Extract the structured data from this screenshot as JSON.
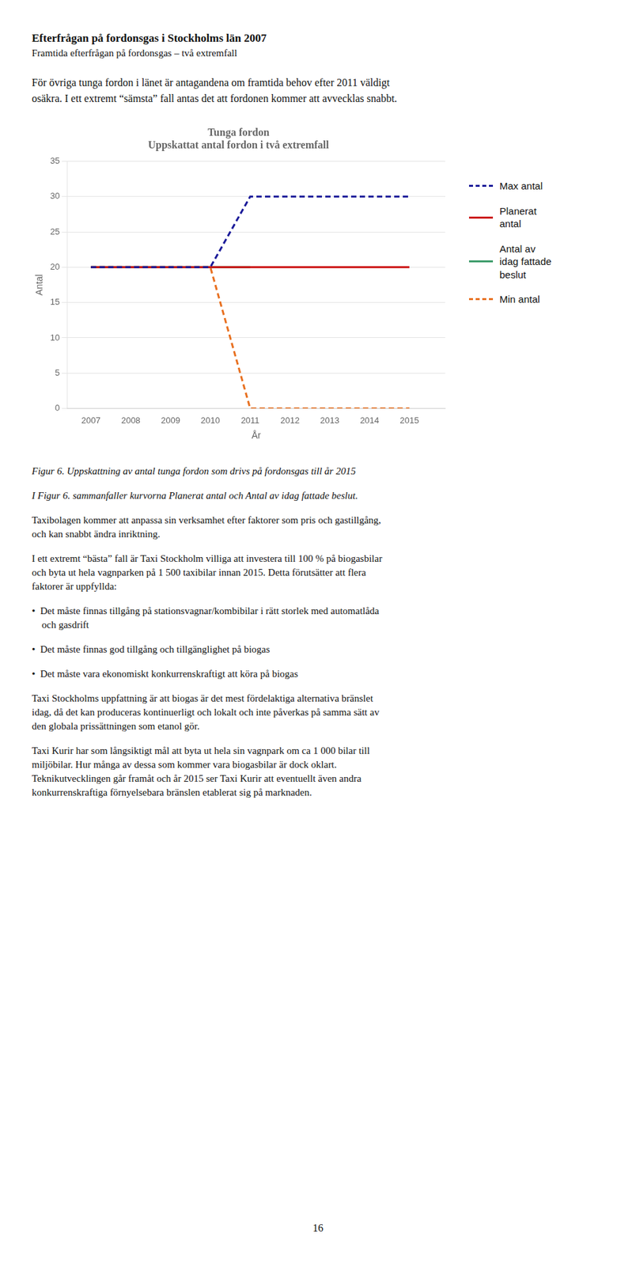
{
  "page_title": "Efterfrågan på fordonsgas i Stockholms län 2007",
  "page_subtitle": "Framtida efterfrågan på fordonsgas – två extremfall",
  "intro_text": "För övriga tunga fordon i länet är antagandena om framtida behov efter 2011 väldigt\nosäkra. I ett extremt “sämsta” fall antas det att fordonen kommer att avvecklas snabbt.",
  "chart_data": {
    "type": "line",
    "title": "Tunga fordon",
    "subtitle": "Uppskattat antal fordon i två extremfall",
    "y_label": "Antal",
    "x_label": "År",
    "xlim": [
      2006.4,
      2015.9
    ],
    "ylim": [
      0,
      35
    ],
    "xticks": [
      2007,
      2008,
      2009,
      2010,
      2011,
      2012,
      2013,
      2014,
      2015
    ],
    "yticks": [
      0,
      5,
      10,
      15,
      20,
      25,
      30,
      35
    ],
    "grid": true,
    "legend": "right",
    "series": [
      {
        "name": "Max antal",
        "color": "#1a1a99",
        "line_style": "dashed",
        "x": [
          2007,
          2010,
          2011,
          2015
        ],
        "values": [
          20,
          20,
          30,
          30
        ]
      },
      {
        "name": "Planerat\nantal",
        "color": "#cc1111",
        "line_style": "solid",
        "x": [
          2007,
          2015
        ],
        "values": [
          20,
          20
        ]
      },
      {
        "name": "Antal av\nidag fattade\nbeslut",
        "color": "#3d9c6a",
        "line_style": "solid",
        "x": [
          2007,
          2011
        ],
        "values": [
          20,
          20
        ]
      },
      {
        "name": "Min antal",
        "color": "#e87020",
        "line_style": "dashed",
        "x": [
          2007,
          2010,
          2011,
          2015
        ],
        "values": [
          20,
          20,
          0,
          0
        ]
      }
    ]
  },
  "body_texts": [
    "Figur 6. Uppskattning av antal tunga fordon som drivs på fordonsgas till år 2015",
    "I Figur 6. sammanfaller kurvorna Planerat antal och Antal av idag fattade beslut.",
    "Taxibolagen kommer att anpassa sin verksamhet efter faktorer som pris och gastillgång,\noch kan snabbt ändra inriktning.",
    "I ett extremt “bästa” fall är Taxi Stockholm villiga att investera till 100 % på biogasbilar\noch byta ut hela vagnparken på 1 500 taxibilar innan 2015. Detta förutsätter att flera\nfaktorer är uppfyllda:",
    "•  Det måste finnas tillgång på stationsvagnar/kombibilar i rätt storlek med automatlåda\n    och gasdrift",
    "•  Det måste finnas god tillgång och tillgänglighet på biogas",
    "•  Det måste vara ekonomiskt konkurrenskraftigt att köra på biogas",
    "Taxi Stockholms uppfattning är att biogas är det mest fördelaktiga alternativa bränslet\nidag, då det kan produceras kontinuerligt och lokalt och inte påverkas på samma sätt av\nden globala prissättningen som etanol gör.",
    "Taxi Kurir har som långsiktigt mål att byta ut hela sin vagnpark om ca 1 000 bilar till\nmiljöbilar. Hur många av dessa som kommer vara biogasbilar är dock oklart.\nTeknikutvecklingen går framåt och år 2015 ser Taxi Kurir att eventuellt även andra\nkonkurrenskraftiga förnyelsebara bränslen etablerat sig på marknaden."
  ],
  "page_number": "16"
}
